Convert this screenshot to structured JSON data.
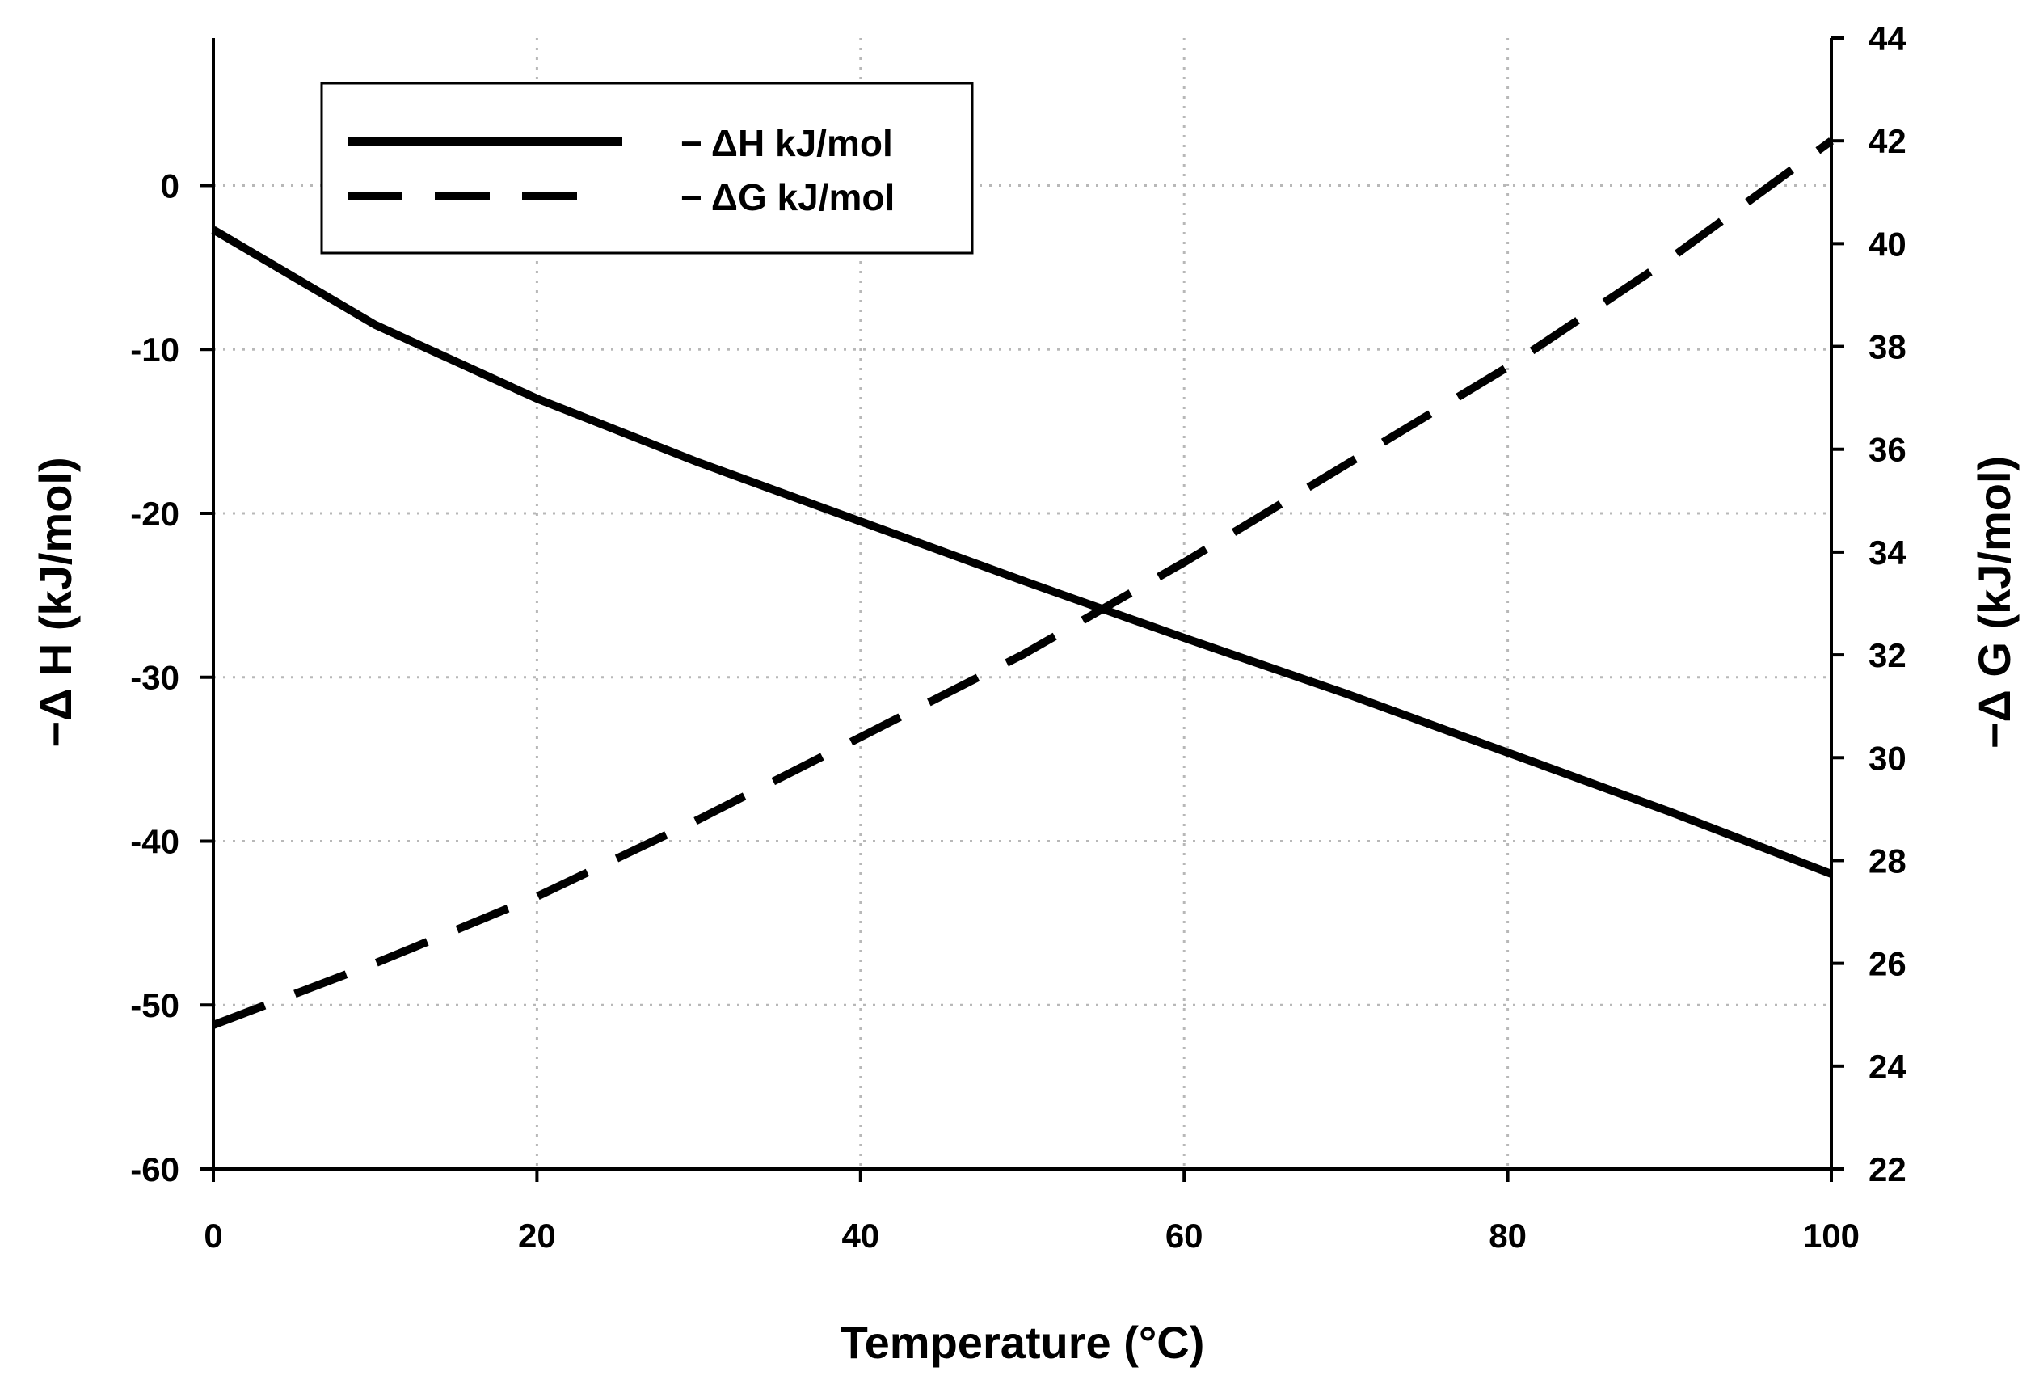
{
  "chart_data": {
    "type": "line",
    "title": "",
    "xlabel": "Temperature (°C)",
    "ylabel_left": "−Δ H (kJ/mol)",
    "ylabel_right": "−Δ G (kJ/mol)",
    "xlim": [
      0,
      100
    ],
    "ylim_left": [
      -60,
      9
    ],
    "ylim_right": [
      22,
      44
    ],
    "x_ticks": [
      0,
      20,
      40,
      60,
      80,
      100
    ],
    "y_left_ticks": [
      -60,
      -50,
      -40,
      -30,
      -20,
      -10,
      0
    ],
    "y_right_ticks": [
      22,
      24,
      26,
      28,
      30,
      32,
      34,
      36,
      38,
      40,
      42,
      44
    ],
    "grid": true,
    "legend_position": "top-left",
    "series": [
      {
        "name": "− ΔH kJ/mol",
        "axis": "left",
        "style": "solid",
        "x": [
          0,
          10,
          20,
          30,
          40,
          50,
          60,
          70,
          80,
          90,
          100
        ],
        "y": [
          -2.7,
          -8.5,
          -13.0,
          -16.9,
          -20.5,
          -24.1,
          -27.6,
          -31.0,
          -34.6,
          -38.2,
          -42.0
        ]
      },
      {
        "name": "− ΔG kJ/mol",
        "axis": "right",
        "style": "dashed",
        "x": [
          0,
          10,
          20,
          30,
          40,
          50,
          60,
          70,
          80,
          90,
          100
        ],
        "y": [
          24.8,
          26.0,
          27.3,
          28.8,
          30.4,
          32.0,
          33.8,
          35.7,
          37.6,
          39.7,
          42.0
        ]
      }
    ]
  }
}
